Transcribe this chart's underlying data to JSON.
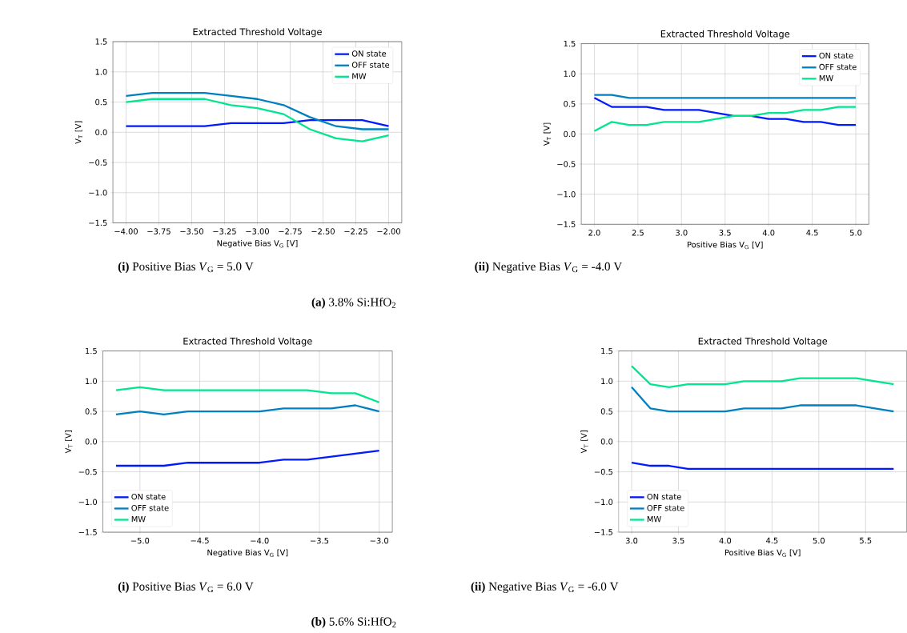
{
  "chart_data": [
    {
      "type": "line",
      "title": "Extracted Threshold Voltage",
      "xlabel": "Negative Bias V$_{G}$ [V]",
      "ylabel": "V$_{T}$ [V]",
      "x": [
        -4.0,
        -3.8,
        -3.6,
        -3.4,
        -3.2,
        -3.0,
        -2.8,
        -2.6,
        -2.4,
        -2.2,
        -2.0
      ],
      "series": [
        {
          "name": "ON state",
          "color": "#0019ff",
          "values": [
            0.1,
            0.1,
            0.1,
            0.1,
            0.15,
            0.15,
            0.15,
            0.2,
            0.2,
            0.2,
            0.1
          ]
        },
        {
          "name": "OFF state",
          "color": "#0080c0",
          "values": [
            0.6,
            0.65,
            0.65,
            0.65,
            0.6,
            0.55,
            0.45,
            0.25,
            0.1,
            0.05,
            0.05
          ]
        },
        {
          "name": "MW",
          "color": "#00e68c",
          "values": [
            0.5,
            0.55,
            0.55,
            0.55,
            0.45,
            0.4,
            0.3,
            0.05,
            -0.1,
            -0.15,
            -0.05
          ]
        }
      ],
      "xlim": [
        -4.1,
        -1.9
      ],
      "ylim": [
        -1.5,
        1.5
      ],
      "xticks": [
        {
          "value": -4.0,
          "label": "−4.00"
        },
        {
          "value": -3.75,
          "label": "−3.75"
        },
        {
          "value": -3.5,
          "label": "−3.50"
        },
        {
          "value": -3.25,
          "label": "−3.25"
        },
        {
          "value": -3.0,
          "label": "−3.00"
        },
        {
          "value": -2.75,
          "label": "−2.75"
        },
        {
          "value": -2.5,
          "label": "−2.50"
        },
        {
          "value": -2.25,
          "label": "−2.25"
        },
        {
          "value": -2.0,
          "label": "−2.00"
        }
      ],
      "yticks": [
        {
          "value": -1.5,
          "label": "−1.5"
        },
        {
          "value": -1.0,
          "label": "−1.0"
        },
        {
          "value": -0.5,
          "label": "−0.5"
        },
        {
          "value": 0.0,
          "label": "0.0"
        },
        {
          "value": 0.5,
          "label": "0.5"
        },
        {
          "value": 1.0,
          "label": "1.0"
        },
        {
          "value": 1.5,
          "label": "1.5"
        }
      ],
      "grid": true,
      "legend": "top right",
      "line_style": "solid",
      "marker": "none",
      "annotations": [
        "**(i)** Positive Bias *V*$_{G}$ = 5.0 V",
        "**(a)** 3.8% Si:HfO$_{2}$"
      ]
    },
    {
      "type": "line",
      "title": "Extracted Threshold Voltage",
      "xlabel": "Positive Bias V$_{G}$ [V]",
      "ylabel": "V$_{T}$ [V]",
      "x": [
        2.0,
        2.2,
        2.4,
        2.6,
        2.8,
        3.0,
        3.2,
        3.4,
        3.6,
        3.8,
        4.0,
        4.2,
        4.4,
        4.6,
        4.8,
        5.0
      ],
      "series": [
        {
          "name": "ON state",
          "color": "#0019ff",
          "values": [
            0.6,
            0.45,
            0.45,
            0.45,
            0.4,
            0.4,
            0.4,
            0.35,
            0.3,
            0.3,
            0.25,
            0.25,
            0.2,
            0.2,
            0.15,
            0.15
          ]
        },
        {
          "name": "OFF state",
          "color": "#0080c0",
          "values": [
            0.65,
            0.65,
            0.6,
            0.6,
            0.6,
            0.6,
            0.6,
            0.6,
            0.6,
            0.6,
            0.6,
            0.6,
            0.6,
            0.6,
            0.6,
            0.6
          ]
        },
        {
          "name": "MW",
          "color": "#00e68c",
          "values": [
            0.05,
            0.2,
            0.15,
            0.15,
            0.2,
            0.2,
            0.2,
            0.25,
            0.3,
            0.3,
            0.35,
            0.35,
            0.4,
            0.4,
            0.45,
            0.45
          ]
        }
      ],
      "xlim": [
        1.85,
        5.15
      ],
      "ylim": [
        -1.5,
        1.5
      ],
      "xticks": [
        {
          "value": 2.0,
          "label": "2.0"
        },
        {
          "value": 2.5,
          "label": "2.5"
        },
        {
          "value": 3.0,
          "label": "3.0"
        },
        {
          "value": 3.5,
          "label": "3.5"
        },
        {
          "value": 4.0,
          "label": "4.0"
        },
        {
          "value": 4.5,
          "label": "4.5"
        },
        {
          "value": 5.0,
          "label": "5.0"
        }
      ],
      "yticks": [
        {
          "value": -1.5,
          "label": "−1.5"
        },
        {
          "value": -1.0,
          "label": "−1.0"
        },
        {
          "value": -0.5,
          "label": "−0.5"
        },
        {
          "value": 0.0,
          "label": "0.0"
        },
        {
          "value": 0.5,
          "label": "0.5"
        },
        {
          "value": 1.0,
          "label": "1.0"
        },
        {
          "value": 1.5,
          "label": "1.5"
        }
      ],
      "grid": true,
      "legend": "top right",
      "line_style": "solid",
      "marker": "none",
      "annotations": [
        "**(ii)** Negative Bias *V*$_{G}$ = -4.0 V"
      ]
    },
    {
      "type": "line",
      "title": "Extracted Threshold Voltage",
      "xlabel": "Negative Bias V$_{G}$ [V]",
      "ylabel": "V$_{T}$ [V]",
      "x": [
        -5.2,
        -5.0,
        -4.8,
        -4.6,
        -4.4,
        -4.2,
        -4.0,
        -3.8,
        -3.6,
        -3.4,
        -3.2,
        -3.0
      ],
      "series": [
        {
          "name": "ON state",
          "color": "#0019ff",
          "values": [
            -0.4,
            -0.4,
            -0.4,
            -0.35,
            -0.35,
            -0.35,
            -0.35,
            -0.3,
            -0.3,
            -0.25,
            -0.2,
            -0.15
          ]
        },
        {
          "name": "OFF state",
          "color": "#0080c0",
          "values": [
            0.45,
            0.5,
            0.45,
            0.5,
            0.5,
            0.5,
            0.5,
            0.55,
            0.55,
            0.55,
            0.6,
            0.5
          ]
        },
        {
          "name": "MW",
          "color": "#00e68c",
          "values": [
            0.85,
            0.9,
            0.85,
            0.85,
            0.85,
            0.85,
            0.85,
            0.85,
            0.85,
            0.8,
            0.8,
            0.65
          ]
        }
      ],
      "xlim": [
        -5.31,
        -2.89
      ],
      "ylim": [
        -1.5,
        1.5
      ],
      "xticks": [
        {
          "value": -5.0,
          "label": "−5.0"
        },
        {
          "value": -4.5,
          "label": "−4.5"
        },
        {
          "value": -4.0,
          "label": "−4.0"
        },
        {
          "value": -3.5,
          "label": "−3.5"
        },
        {
          "value": -3.0,
          "label": "−3.0"
        }
      ],
      "yticks": [
        {
          "value": -1.5,
          "label": "−1.5"
        },
        {
          "value": -1.0,
          "label": "−1.0"
        },
        {
          "value": -0.5,
          "label": "−0.5"
        },
        {
          "value": 0.0,
          "label": "0.0"
        },
        {
          "value": 0.5,
          "label": "0.5"
        },
        {
          "value": 1.0,
          "label": "1.0"
        },
        {
          "value": 1.5,
          "label": "1.5"
        }
      ],
      "grid": true,
      "legend": "bottom left",
      "line_style": "solid",
      "marker": "none",
      "annotations": [
        "**(i)** Positive Bias *V*$_{G}$ = 6.0 V",
        "**(b)** 5.6% Si:HfO$_{2}$"
      ]
    },
    {
      "type": "line",
      "title": "Extracted Threshold Voltage",
      "xlabel": "Positive Bias V$_{G}$ [V]",
      "ylabel": "V$_{T}$ [V]",
      "x": [
        3.0,
        3.2,
        3.4,
        3.6,
        3.8,
        4.0,
        4.2,
        4.4,
        4.6,
        4.8,
        5.0,
        5.2,
        5.4,
        5.6,
        5.8
      ],
      "series": [
        {
          "name": "ON state",
          "color": "#0019ff",
          "values": [
            -0.35,
            -0.4,
            -0.4,
            -0.45,
            -0.45,
            -0.45,
            -0.45,
            -0.45,
            -0.45,
            -0.45,
            -0.45,
            -0.45,
            -0.45,
            -0.45,
            -0.45
          ]
        },
        {
          "name": "OFF state",
          "color": "#0080c0",
          "values": [
            0.9,
            0.55,
            0.5,
            0.5,
            0.5,
            0.5,
            0.55,
            0.55,
            0.55,
            0.6,
            0.6,
            0.6,
            0.6,
            0.55,
            0.5
          ]
        },
        {
          "name": "MW",
          "color": "#00e68c",
          "values": [
            1.25,
            0.95,
            0.9,
            0.95,
            0.95,
            0.95,
            1.0,
            1.0,
            1.0,
            1.05,
            1.05,
            1.05,
            1.05,
            1.0,
            0.95
          ]
        }
      ],
      "xlim": [
        2.86,
        5.94
      ],
      "ylim": [
        -1.5,
        1.5
      ],
      "xticks": [
        {
          "value": 3.0,
          "label": "3.0"
        },
        {
          "value": 3.5,
          "label": "3.5"
        },
        {
          "value": 4.0,
          "label": "4.0"
        },
        {
          "value": 4.5,
          "label": "4.5"
        },
        {
          "value": 5.0,
          "label": "5.0"
        },
        {
          "value": 5.5,
          "label": "5.5"
        }
      ],
      "yticks": [
        {
          "value": -1.5,
          "label": "−1.5"
        },
        {
          "value": -1.0,
          "label": "−1.0"
        },
        {
          "value": -0.5,
          "label": "−0.5"
        },
        {
          "value": 0.0,
          "label": "0.0"
        },
        {
          "value": 0.5,
          "label": "0.5"
        },
        {
          "value": 1.0,
          "label": "1.0"
        },
        {
          "value": 1.5,
          "label": "1.5"
        }
      ],
      "grid": true,
      "legend": "bottom left",
      "line_style": "solid",
      "marker": "none",
      "annotations": [
        "**(ii)** Negative Bias *V*$_{G}$ = -6.0 V"
      ]
    }
  ]
}
